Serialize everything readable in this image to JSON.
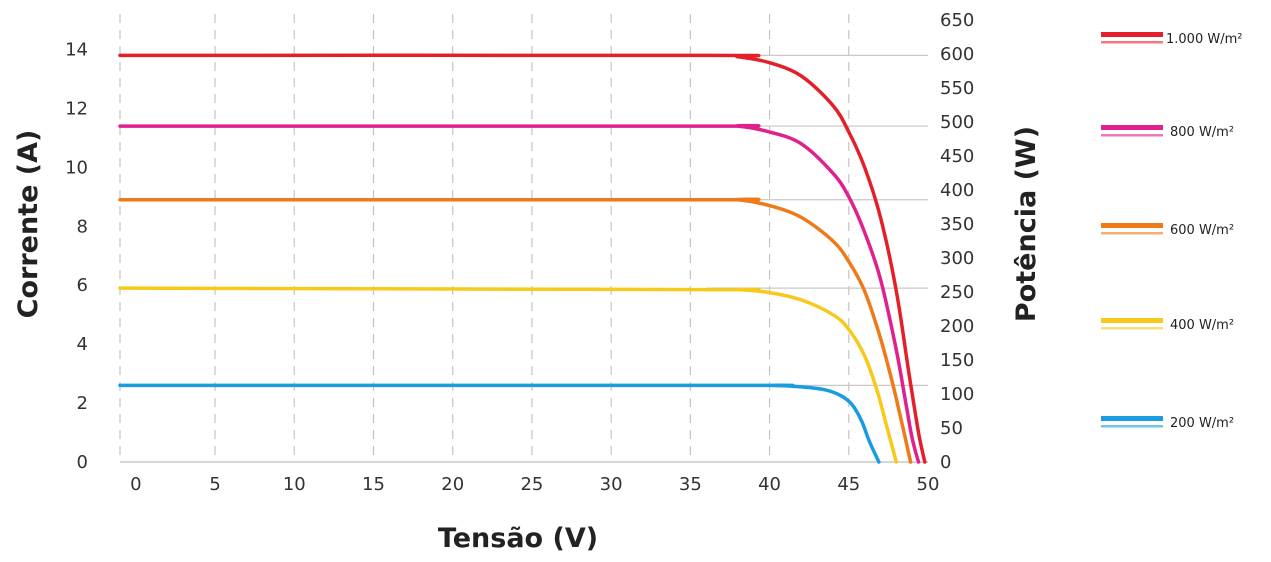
{
  "chart_data": {
    "type": "line",
    "title": "",
    "xlabel": "Tensão (V)",
    "ylabel": "Corrente (A)",
    "y2label": "Potência (W)",
    "xlim": [
      -1,
      50
    ],
    "ylim": [
      0,
      15
    ],
    "y2lim": [
      0,
      650
    ],
    "x_ticks": [
      "0",
      "5",
      "10",
      "15",
      "20",
      "25",
      "30",
      "35",
      "40",
      "45",
      "50"
    ],
    "y_ticks": [
      "0",
      "2",
      "4",
      "6",
      "8",
      "10",
      "12",
      "14"
    ],
    "y2_ticks": [
      "0",
      "50",
      "100",
      "150",
      "200",
      "250",
      "300",
      "350",
      "400",
      "450",
      "500",
      "550",
      "600",
      "650"
    ],
    "grid": {
      "vertical": "dashed",
      "horizontal": "at curve levels"
    },
    "legend_position": "right",
    "series": [
      {
        "name": "1.000 W/m²",
        "color": "#e3202a",
        "x": [
          -1,
          36,
          38,
          40,
          42,
          44,
          45,
          46,
          47,
          48,
          48.8,
          49.4,
          49.8
        ],
        "y": [
          13.8,
          13.8,
          13.75,
          13.55,
          13.1,
          12.1,
          11.2,
          10.0,
          8.3,
          5.8,
          3.0,
          1.0,
          0
        ]
      },
      {
        "name": "800 W/m²",
        "color": "#e0208c",
        "x": [
          -1,
          36,
          38,
          40,
          42,
          44,
          45,
          46,
          47,
          48,
          48.6,
          49.0,
          49.4
        ],
        "y": [
          11.4,
          11.4,
          11.4,
          11.2,
          10.8,
          9.8,
          9.0,
          7.8,
          6.2,
          3.8,
          2.0,
          0.8,
          0
        ]
      },
      {
        "name": "600 W/m²",
        "color": "#ee7a1a",
        "x": [
          -1,
          36,
          38,
          40,
          42,
          44,
          45,
          46,
          47,
          47.8,
          48.4,
          48.9
        ],
        "y": [
          8.9,
          8.9,
          8.9,
          8.7,
          8.3,
          7.5,
          6.8,
          5.8,
          4.2,
          2.6,
          1.2,
          0
        ]
      },
      {
        "name": "400 W/m²",
        "color": "#f7c91b",
        "x": [
          -1,
          36,
          38,
          40,
          42,
          44,
          45,
          46,
          46.8,
          47.4,
          48.0
        ],
        "y": [
          5.9,
          5.85,
          5.85,
          5.75,
          5.5,
          5.0,
          4.5,
          3.6,
          2.4,
          1.2,
          0
        ]
      },
      {
        "name": "200 W/m²",
        "color": "#1a9ce0",
        "x": [
          -1,
          38,
          40,
          42,
          43.5,
          44.5,
          45.2,
          45.8,
          46.3,
          46.9
        ],
        "y": [
          2.6,
          2.6,
          2.6,
          2.55,
          2.45,
          2.25,
          1.95,
          1.4,
          0.7,
          0
        ]
      }
    ]
  }
}
